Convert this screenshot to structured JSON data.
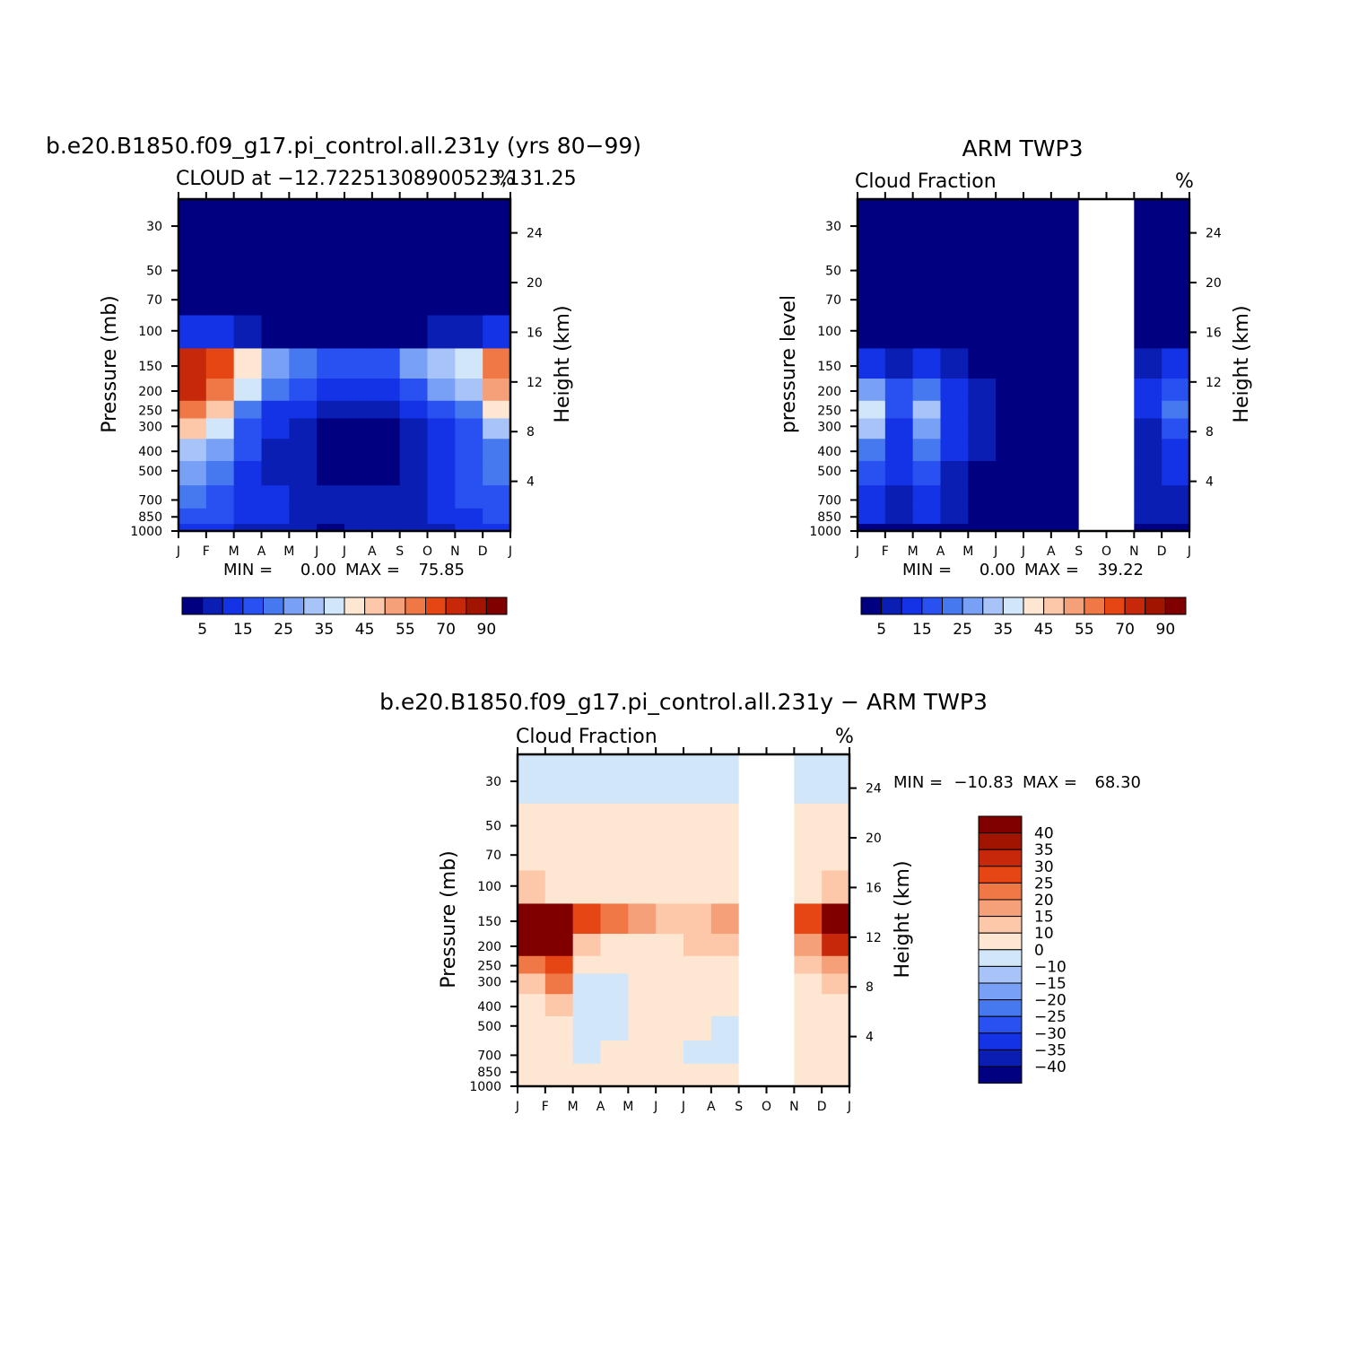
{
  "colors": {
    "cloud_scale": [
      "#010080",
      "#0a1eb4",
      "#1432e6",
      "#2950f0",
      "#4678f0",
      "#78a0f5",
      "#a7c3f7",
      "#d2e6fa",
      "#fde6d2",
      "#fdc8aa",
      "#f5a078",
      "#f07846",
      "#e64614",
      "#c8280a",
      "#a01400",
      "#800000"
    ],
    "diff_scale": [
      "#010080",
      "#0a1eb4",
      "#1432e6",
      "#2950f0",
      "#4678f0",
      "#78a0f5",
      "#a7c3f7",
      "#d2e6fa",
      "#fde6d2",
      "#fdc8aa",
      "#f5a078",
      "#f07846",
      "#e64614",
      "#c8280a",
      "#a01400",
      "#800000"
    ],
    "background": "#ffffff",
    "frame": "#000000"
  },
  "chart_data": [
    {
      "type": "heatmap",
      "title": "b.e20.B1850.f09_g17.pi_control.all.231y (yrs 80−99)",
      "subtitle_left": "CLOUD at −12.72251308900523,131.25",
      "subtitle_right": "%",
      "xlabel": "",
      "ylabel": "Pressure (mb)",
      "ylabel_right": "Height (km)",
      "x_ticks": [
        "J",
        "F",
        "M",
        "A",
        "M",
        "J",
        "J",
        "A",
        "S",
        "O",
        "N",
        "D",
        "J"
      ],
      "y_ticks": [
        "30",
        "50",
        "70",
        "100",
        "150",
        "200",
        "250",
        "300",
        "400",
        "500",
        "700",
        "850",
        "1000"
      ],
      "y_ticks_right": [
        "24",
        "20",
        "16",
        "12",
        "8",
        "4"
      ],
      "stats": {
        "min_label": "MIN =",
        "min": "0.00",
        "max_label": "MAX =",
        "max": "75.85"
      },
      "colorbar": {
        "orientation": "horizontal",
        "labels": [
          "5",
          "15",
          "25",
          "35",
          "45",
          "55",
          "70",
          "90"
        ],
        "levels": [
          5,
          10,
          15,
          20,
          25,
          30,
          35,
          40,
          45,
          50,
          55,
          60,
          70,
          80,
          90
        ]
      },
      "missing_months": [],
      "profiles": {
        "J": [
          0,
          0,
          0,
          14,
          70,
          70,
          58,
          45,
          30,
          25,
          20,
          18,
          10
        ],
        "F": [
          0,
          0,
          0,
          10,
          62,
          58,
          45,
          35,
          25,
          20,
          18,
          15,
          10
        ],
        "M": [
          0,
          0,
          0,
          6,
          40,
          35,
          22,
          18,
          15,
          12,
          12,
          12,
          8
        ],
        "A": [
          0,
          0,
          0,
          3,
          28,
          20,
          12,
          10,
          8,
          8,
          10,
          10,
          6
        ],
        "M2": [
          0,
          0,
          0,
          2,
          20,
          15,
          10,
          8,
          6,
          6,
          8,
          8,
          5
        ],
        "J2": [
          0,
          0,
          0,
          1,
          15,
          10,
          6,
          4,
          2,
          2,
          5,
          6,
          4
        ],
        "J3": [
          0,
          0,
          0,
          1,
          15,
          12,
          6,
          3,
          2,
          2,
          6,
          8,
          5
        ],
        "A2": [
          0,
          0,
          0,
          2,
          18,
          14,
          8,
          4,
          2,
          3,
          6,
          7,
          5
        ],
        "S": [
          0,
          0,
          0,
          3,
          25,
          18,
          10,
          6,
          5,
          6,
          8,
          8,
          5
        ],
        "O": [
          0,
          0,
          0,
          5,
          32,
          25,
          15,
          12,
          12,
          12,
          14,
          12,
          8
        ],
        "N": [
          0,
          0,
          0,
          8,
          35,
          30,
          22,
          18,
          16,
          16,
          16,
          14,
          10
        ],
        "D": [
          0,
          0,
          0,
          12,
          55,
          52,
          40,
          30,
          22,
          20,
          18,
          16,
          10
        ],
        "J4": [
          0,
          0,
          0,
          14,
          70,
          70,
          58,
          45,
          30,
          25,
          20,
          18,
          10
        ]
      }
    },
    {
      "type": "heatmap",
      "title": "ARM TWP3",
      "subtitle_left": "Cloud Fraction",
      "subtitle_right": "%",
      "xlabel": "",
      "ylabel": "pressure level",
      "ylabel_right": "Height (km)",
      "x_ticks": [
        "J",
        "F",
        "M",
        "A",
        "M",
        "J",
        "J",
        "A",
        "S",
        "O",
        "N",
        "D",
        "J"
      ],
      "y_ticks": [
        "30",
        "50",
        "70",
        "100",
        "150",
        "200",
        "250",
        "300",
        "400",
        "500",
        "700",
        "850",
        "1000"
      ],
      "y_ticks_right": [
        "24",
        "20",
        "16",
        "12",
        "8",
        "4"
      ],
      "stats": {
        "min_label": "MIN =",
        "min": "0.00",
        "max_label": "MAX =",
        "max": "39.22"
      },
      "colorbar": {
        "orientation": "horizontal",
        "labels": [
          "5",
          "15",
          "25",
          "35",
          "45",
          "55",
          "70",
          "90"
        ],
        "levels": [
          5,
          10,
          15,
          20,
          25,
          30,
          35,
          40,
          45,
          50,
          55,
          60,
          70,
          80,
          90
        ]
      },
      "missing_months": [
        "S",
        "O"
      ],
      "profiles": {
        "J": [
          0,
          0,
          0,
          0,
          12,
          25,
          35,
          30,
          22,
          18,
          14,
          10,
          4
        ],
        "F": [
          0,
          0,
          0,
          0,
          8,
          15,
          16,
          14,
          12,
          10,
          8,
          8,
          3
        ],
        "M": [
          0,
          0,
          0,
          0,
          10,
          22,
          30,
          26,
          22,
          18,
          14,
          10,
          3
        ],
        "A": [
          0,
          0,
          0,
          0,
          6,
          12,
          14,
          12,
          10,
          8,
          8,
          6,
          2
        ],
        "M2": [
          0,
          0,
          0,
          0,
          3,
          5,
          6,
          5,
          5,
          4,
          4,
          3,
          1
        ],
        "J2": [
          0,
          0,
          0,
          0,
          0,
          0,
          0,
          0,
          0,
          0,
          0,
          1,
          0
        ],
        "J3": [
          0,
          0,
          0,
          0,
          0,
          0,
          0,
          0,
          0,
          0,
          0,
          0,
          0
        ],
        "A2": [
          0,
          0,
          0,
          0,
          0,
          0,
          0,
          0,
          0,
          0,
          0,
          0,
          0
        ],
        "S": [
          0,
          0,
          0,
          0,
          0,
          0,
          0,
          0,
          0,
          0,
          0,
          0,
          0
        ],
        "O": [
          0,
          0,
          0,
          0,
          0,
          0,
          0,
          0,
          0,
          0,
          0,
          0,
          0
        ],
        "N": [
          0,
          0,
          0,
          0,
          8,
          10,
          10,
          8,
          6,
          6,
          6,
          5,
          2
        ],
        "D": [
          0,
          0,
          0,
          0,
          10,
          18,
          20,
          16,
          12,
          10,
          8,
          6,
          2
        ],
        "J4": [
          0,
          0,
          0,
          0,
          12,
          25,
          35,
          30,
          22,
          18,
          14,
          10,
          4
        ]
      }
    },
    {
      "type": "heatmap",
      "title": "b.e20.B1850.f09_g17.pi_control.all.231y − ARM TWP3",
      "subtitle_left": "Cloud Fraction",
      "subtitle_right": "%",
      "xlabel": "",
      "ylabel": "Pressure (mb)",
      "ylabel_right": "Height (km)",
      "x_ticks": [
        "J",
        "F",
        "M",
        "A",
        "M",
        "J",
        "J",
        "A",
        "S",
        "O",
        "N",
        "D",
        "J"
      ],
      "y_ticks": [
        "30",
        "50",
        "70",
        "100",
        "150",
        "200",
        "250",
        "300",
        "400",
        "500",
        "700",
        "850",
        "1000"
      ],
      "y_ticks_right": [
        "24",
        "20",
        "16",
        "12",
        "8",
        "4"
      ],
      "stats": {
        "min_label": "MIN =",
        "min": "−10.83",
        "max_label": "MAX =",
        "max": "68.30"
      },
      "colorbar": {
        "orientation": "vertical",
        "labels": [
          "40",
          "35",
          "30",
          "25",
          "20",
          "15",
          "10",
          "0",
          "−10",
          "−15",
          "−20",
          "−25",
          "−30",
          "−35",
          "−40"
        ],
        "levels": [
          -40,
          -35,
          -30,
          -25,
          -20,
          -15,
          -10,
          0,
          10,
          15,
          20,
          25,
          30,
          35,
          40
        ]
      },
      "missing_months": [
        "S",
        "O"
      ],
      "profiles": {
        "J": [
          -1,
          2,
          3,
          14,
          58,
          45,
          25,
          15,
          8,
          8,
          6,
          8,
          6
        ],
        "F": [
          -1,
          2,
          3,
          10,
          54,
          43,
          29,
          21,
          13,
          10,
          10,
          7,
          7
        ],
        "M": [
          -1,
          2,
          3,
          6,
          30,
          13,
          8,
          -8,
          -7,
          -6,
          -2,
          2,
          5
        ],
        "A": [
          -1,
          2,
          3,
          3,
          22,
          8,
          4,
          -2,
          -2,
          -4,
          2,
          4,
          4
        ],
        "M2": [
          -1,
          2,
          3,
          2,
          17,
          10,
          4,
          3,
          1,
          2,
          4,
          5,
          4
        ],
        "J2": [
          -1,
          2,
          3,
          1,
          15,
          10,
          6,
          4,
          2,
          2,
          5,
          5,
          4
        ],
        "J3": [
          -1,
          2,
          3,
          1,
          15,
          12,
          6,
          3,
          2,
          2,
          -2,
          6,
          5
        ],
        "A2": [
          -1,
          1,
          3,
          2,
          18,
          14,
          8,
          4,
          2,
          -1,
          -3,
          7,
          5
        ],
        "S": [
          -1,
          1,
          3,
          3,
          25,
          18,
          10,
          6,
          5,
          6,
          8,
          8,
          5
        ],
        "O": [
          -1,
          1,
          3,
          3,
          25,
          18,
          10,
          6,
          5,
          6,
          8,
          8,
          5
        ],
        "N": [
          -1,
          2,
          3,
          8,
          27,
          20,
          12,
          10,
          10,
          10,
          10,
          9,
          8
        ],
        "D": [
          -1,
          2,
          3,
          12,
          45,
          34,
          20,
          14,
          10,
          10,
          10,
          10,
          8
        ],
        "J4": [
          -1,
          2,
          3,
          14,
          58,
          45,
          25,
          15,
          8,
          8,
          6,
          8,
          6
        ]
      }
    }
  ]
}
